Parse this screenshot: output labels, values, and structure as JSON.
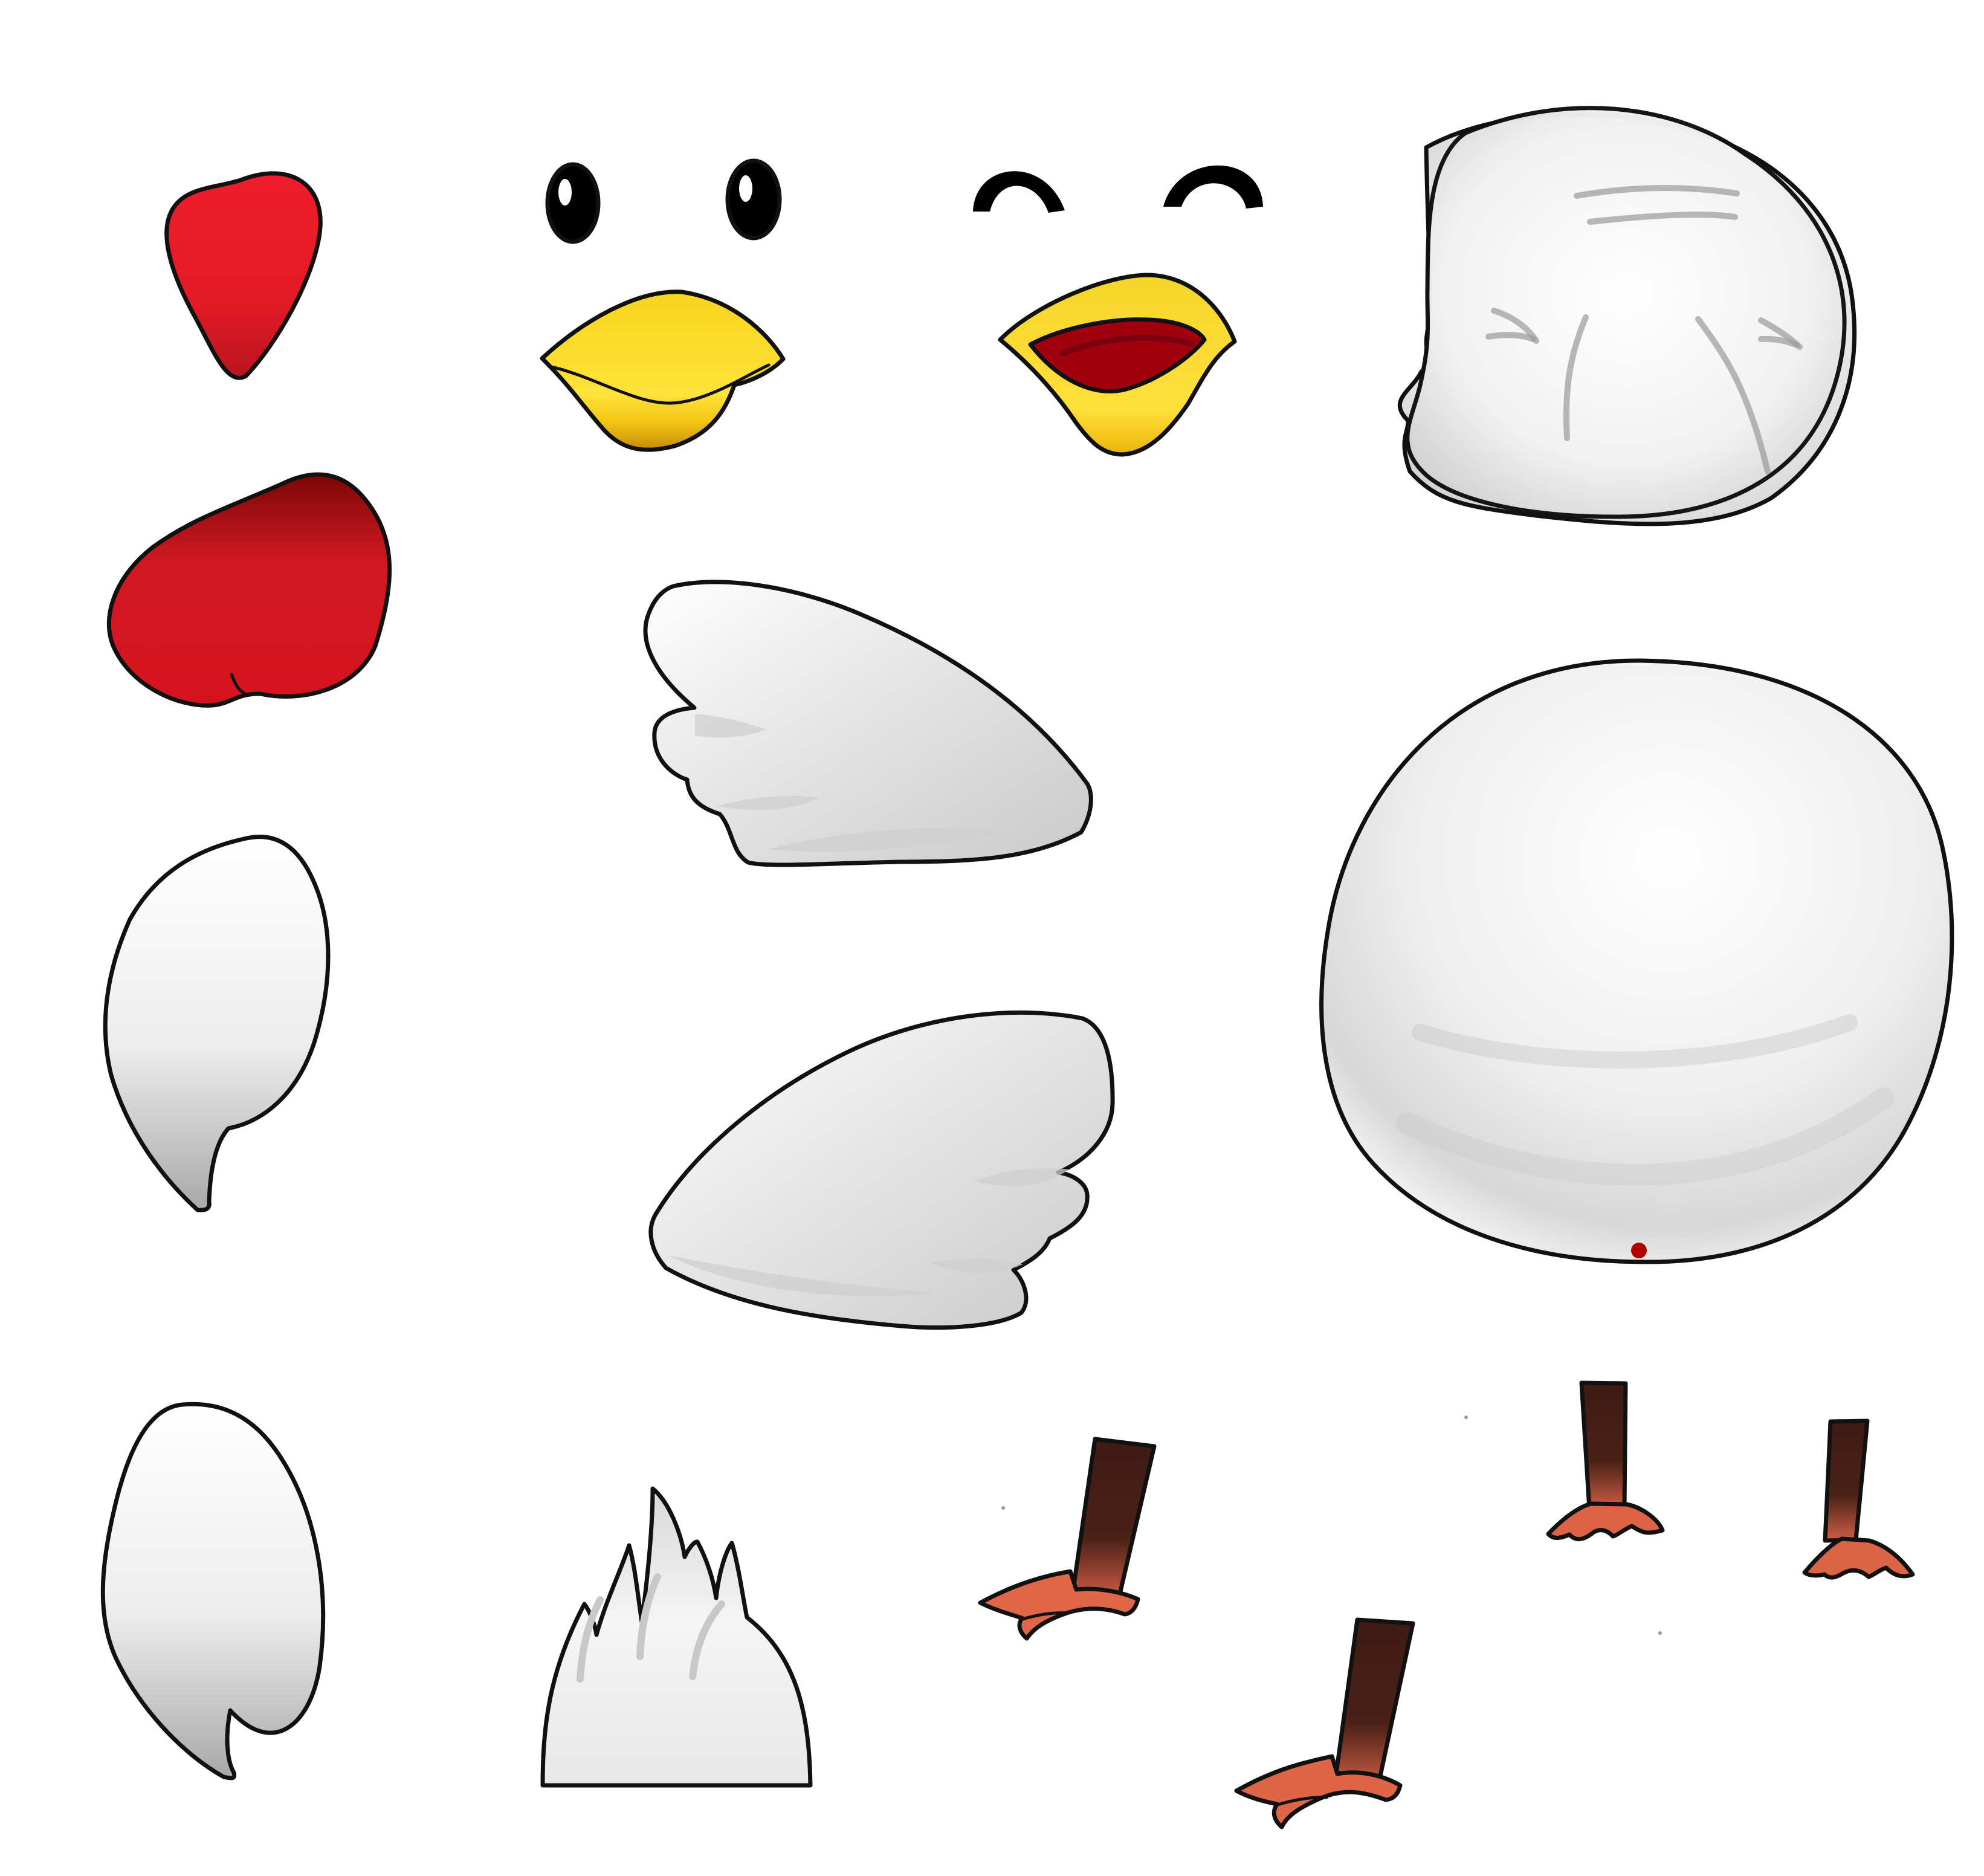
{
  "sheet": {
    "background": "#ffffff",
    "parts": [
      {
        "name": "comb",
        "icon": "chicken-comb-icon",
        "color": "#e41e26"
      },
      {
        "name": "eyes-open",
        "icon": "round-eyes-icon",
        "color": "#000000"
      },
      {
        "name": "eyes-happy",
        "icon": "closed-happy-eyes-icon",
        "color": "#000000"
      },
      {
        "name": "beak-closed",
        "icon": "closed-beak-icon",
        "color": "#f7d51d"
      },
      {
        "name": "beak-open",
        "icon": "open-beak-icon",
        "color": "#f7d51d"
      },
      {
        "name": "head",
        "icon": "chicken-head-icon",
        "color": "#f2f2f2"
      },
      {
        "name": "wattle",
        "icon": "wattle-icon",
        "color": "#d9141f"
      },
      {
        "name": "wing-right",
        "icon": "wing-icon",
        "color": "#dedede"
      },
      {
        "name": "wing-left",
        "icon": "wing-icon",
        "color": "#dedede"
      },
      {
        "name": "body",
        "icon": "round-body-icon",
        "color": "#ededed"
      },
      {
        "name": "tail-feather-1",
        "icon": "feather-icon",
        "color": "#efefef"
      },
      {
        "name": "tail-feather-2",
        "icon": "feather-icon",
        "color": "#efefef"
      },
      {
        "name": "tail-tuft",
        "icon": "tail-tuft-icon",
        "color": "#f0f0f0"
      },
      {
        "name": "leg-1",
        "icon": "chicken-leg-icon",
        "color": "#4a2117"
      },
      {
        "name": "leg-2",
        "icon": "chicken-leg-icon",
        "color": "#4a2117"
      },
      {
        "name": "leg-front-left",
        "icon": "chicken-leg-icon",
        "color": "#4a2117"
      },
      {
        "name": "leg-front-right",
        "icon": "chicken-leg-icon",
        "color": "#4a2117"
      }
    ],
    "colors": {
      "red": "#e41e26",
      "dark_red": "#8c0c12",
      "yellow": "#f7d51d",
      "dark_yellow": "#c99006",
      "mouth": "#a10f19",
      "feather": "#ececec",
      "feather_shade": "#bcbcbc",
      "leg_dark": "#4a2117",
      "leg_mid": "#8a3a25",
      "foot": "#de6547",
      "outline": "#111111"
    }
  }
}
